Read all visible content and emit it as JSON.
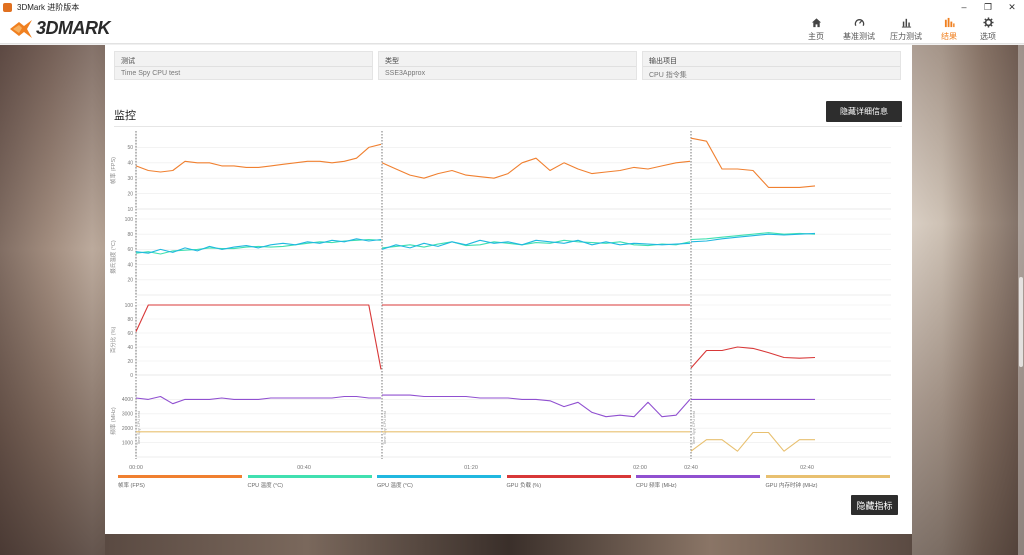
{
  "window": {
    "title": "3DMark 进阶版本",
    "min_icon": "minimize-icon",
    "max_icon": "restore-icon",
    "close_icon": "close-icon"
  },
  "header": {
    "logo_text": "3DMARK",
    "nav": [
      {
        "label": "主页",
        "icon": "home-icon",
        "active": false
      },
      {
        "label": "基准测试",
        "icon": "gauge-icon",
        "active": false
      },
      {
        "label": "压力测试",
        "icon": "stress-chart-icon",
        "active": false
      },
      {
        "label": "结果",
        "icon": "results-bars-icon",
        "active": true
      },
      {
        "label": "选项",
        "icon": "gear-icon",
        "active": false
      }
    ]
  },
  "info": [
    {
      "label": "测试",
      "value": "Time Spy CPU test"
    },
    {
      "label": "类型",
      "value": "SSE3Approx"
    },
    {
      "label": "输出项目",
      "value": "CPU 指令集"
    }
  ],
  "monitor": {
    "title": "监控",
    "hide_details_button": "隐藏详细信息",
    "hide_metrics_button": "隐藏指标"
  },
  "colors": {
    "accent": "#f08020",
    "fps": "#f08030",
    "cpu_temp": "#40e0b0",
    "gpu_temp": "#20b8e0",
    "gpu_load": "#d83838",
    "cpu_clock": "#9050d0",
    "gpu_mem_clock": "#e8c070"
  },
  "chart_data": {
    "type": "line",
    "panels": [
      {
        "ylabel": "帧率 (FPS)",
        "ylim": [
          10,
          60
        ],
        "ticks": [
          "50",
          "40",
          "30",
          "20",
          "10"
        ]
      },
      {
        "ylabel": "摄氏温度 (°C)",
        "ylim": [
          0,
          100
        ],
        "ticks": [
          "100",
          "80",
          "60",
          "40",
          "20"
        ]
      },
      {
        "ylabel": "百分比 (%)",
        "ylim": [
          0,
          100
        ],
        "ticks": [
          "100",
          "80",
          "60",
          "40",
          "20",
          "0"
        ]
      },
      {
        "ylabel": "频率 (MHz)",
        "ylim": [
          0,
          5000
        ],
        "ticks": [
          "4000",
          "3000",
          "2000",
          "1000"
        ]
      }
    ],
    "x_ticks": [
      "00:00",
      "00:40",
      "01:20",
      "02:00",
      "02:40",
      "02:40"
    ],
    "segments": [
      "Time Spy CPU test",
      "Time Spy CPU test",
      "Time Spy CPU test"
    ],
    "series": [
      {
        "name": "帧率 (FPS)",
        "panel": 0,
        "values": [
          38,
          35,
          34,
          35,
          41,
          40,
          40,
          38,
          38,
          37,
          37,
          38,
          39,
          40,
          41,
          41,
          40,
          41,
          43,
          50,
          52,
          null,
          40,
          36,
          32,
          30,
          33,
          35,
          32,
          31,
          30,
          33,
          40,
          43,
          35,
          40,
          36,
          33,
          34,
          35,
          37,
          36,
          38,
          40,
          41,
          null,
          56,
          54,
          36,
          36,
          35,
          24,
          24,
          24,
          25
        ]
      },
      {
        "name": "CPU 温度 (°C)",
        "panel": 1,
        "values": [
          55,
          57,
          54,
          58,
          59,
          60,
          62,
          61,
          61,
          63,
          64,
          63,
          64,
          66,
          68,
          70,
          69,
          71,
          72,
          73,
          72,
          null,
          62,
          64,
          66,
          63,
          67,
          70,
          65,
          66,
          70,
          68,
          66,
          69,
          68,
          72,
          70,
          69,
          68,
          70,
          66,
          65,
          67,
          66,
          70,
          null,
          73,
          74,
          76,
          78,
          80,
          82,
          80,
          81,
          80
        ]
      },
      {
        "name": "GPU 温度 (°C)",
        "panel": 1,
        "values": [
          57,
          55,
          60,
          56,
          62,
          58,
          64,
          60,
          63,
          65,
          62,
          66,
          68,
          66,
          70,
          68,
          72,
          70,
          74,
          71,
          73,
          null,
          60,
          66,
          62,
          68,
          64,
          70,
          66,
          72,
          68,
          70,
          66,
          72,
          70,
          68,
          72,
          66,
          70,
          66,
          68,
          67,
          66,
          67,
          68,
          null,
          70,
          71,
          74,
          76,
          78,
          80,
          79,
          80,
          81
        ]
      },
      {
        "name": "GPU 负载 (%)",
        "panel": 2,
        "values": [
          62,
          100,
          100,
          100,
          100,
          100,
          100,
          100,
          100,
          100,
          100,
          100,
          100,
          100,
          100,
          100,
          100,
          100,
          100,
          100,
          8,
          null,
          100,
          100,
          100,
          100,
          100,
          100,
          100,
          100,
          100,
          100,
          100,
          100,
          100,
          100,
          100,
          100,
          100,
          100,
          100,
          100,
          100,
          100,
          100,
          null,
          10,
          35,
          35,
          40,
          38,
          32,
          25,
          24,
          25
        ]
      },
      {
        "name": "CPU 频率 (MHz)",
        "panel": 3,
        "values": [
          4100,
          4000,
          4200,
          3700,
          4000,
          4000,
          4000,
          4100,
          4000,
          4000,
          4000,
          4100,
          4100,
          4100,
          4100,
          4100,
          4100,
          4200,
          4200,
          4100,
          4100,
          null,
          4300,
          4300,
          4300,
          4200,
          4200,
          4200,
          4200,
          4100,
          4100,
          4100,
          4000,
          4000,
          3900,
          3500,
          3800,
          3100,
          2800,
          2900,
          2800,
          3800,
          2800,
          2900,
          4000,
          null,
          4000,
          4000,
          4000,
          4000,
          4000,
          4000,
          4000,
          4000,
          4000
        ]
      },
      {
        "name": "GPU 内存时钟 (MHz)",
        "panel": 3,
        "values": [
          1750,
          1750,
          1750,
          1750,
          1750,
          1750,
          1750,
          1750,
          1750,
          1750,
          1750,
          1750,
          1750,
          1750,
          1750,
          1750,
          1750,
          1750,
          1750,
          1750,
          1750,
          null,
          1750,
          1750,
          1750,
          1750,
          1750,
          1750,
          1750,
          1750,
          1750,
          1750,
          1750,
          1750,
          1750,
          1750,
          1750,
          1750,
          1750,
          1750,
          1750,
          1750,
          1750,
          1750,
          1750,
          null,
          400,
          1200,
          1200,
          400,
          1700,
          1700,
          400,
          1200,
          1200
        ]
      }
    ]
  }
}
